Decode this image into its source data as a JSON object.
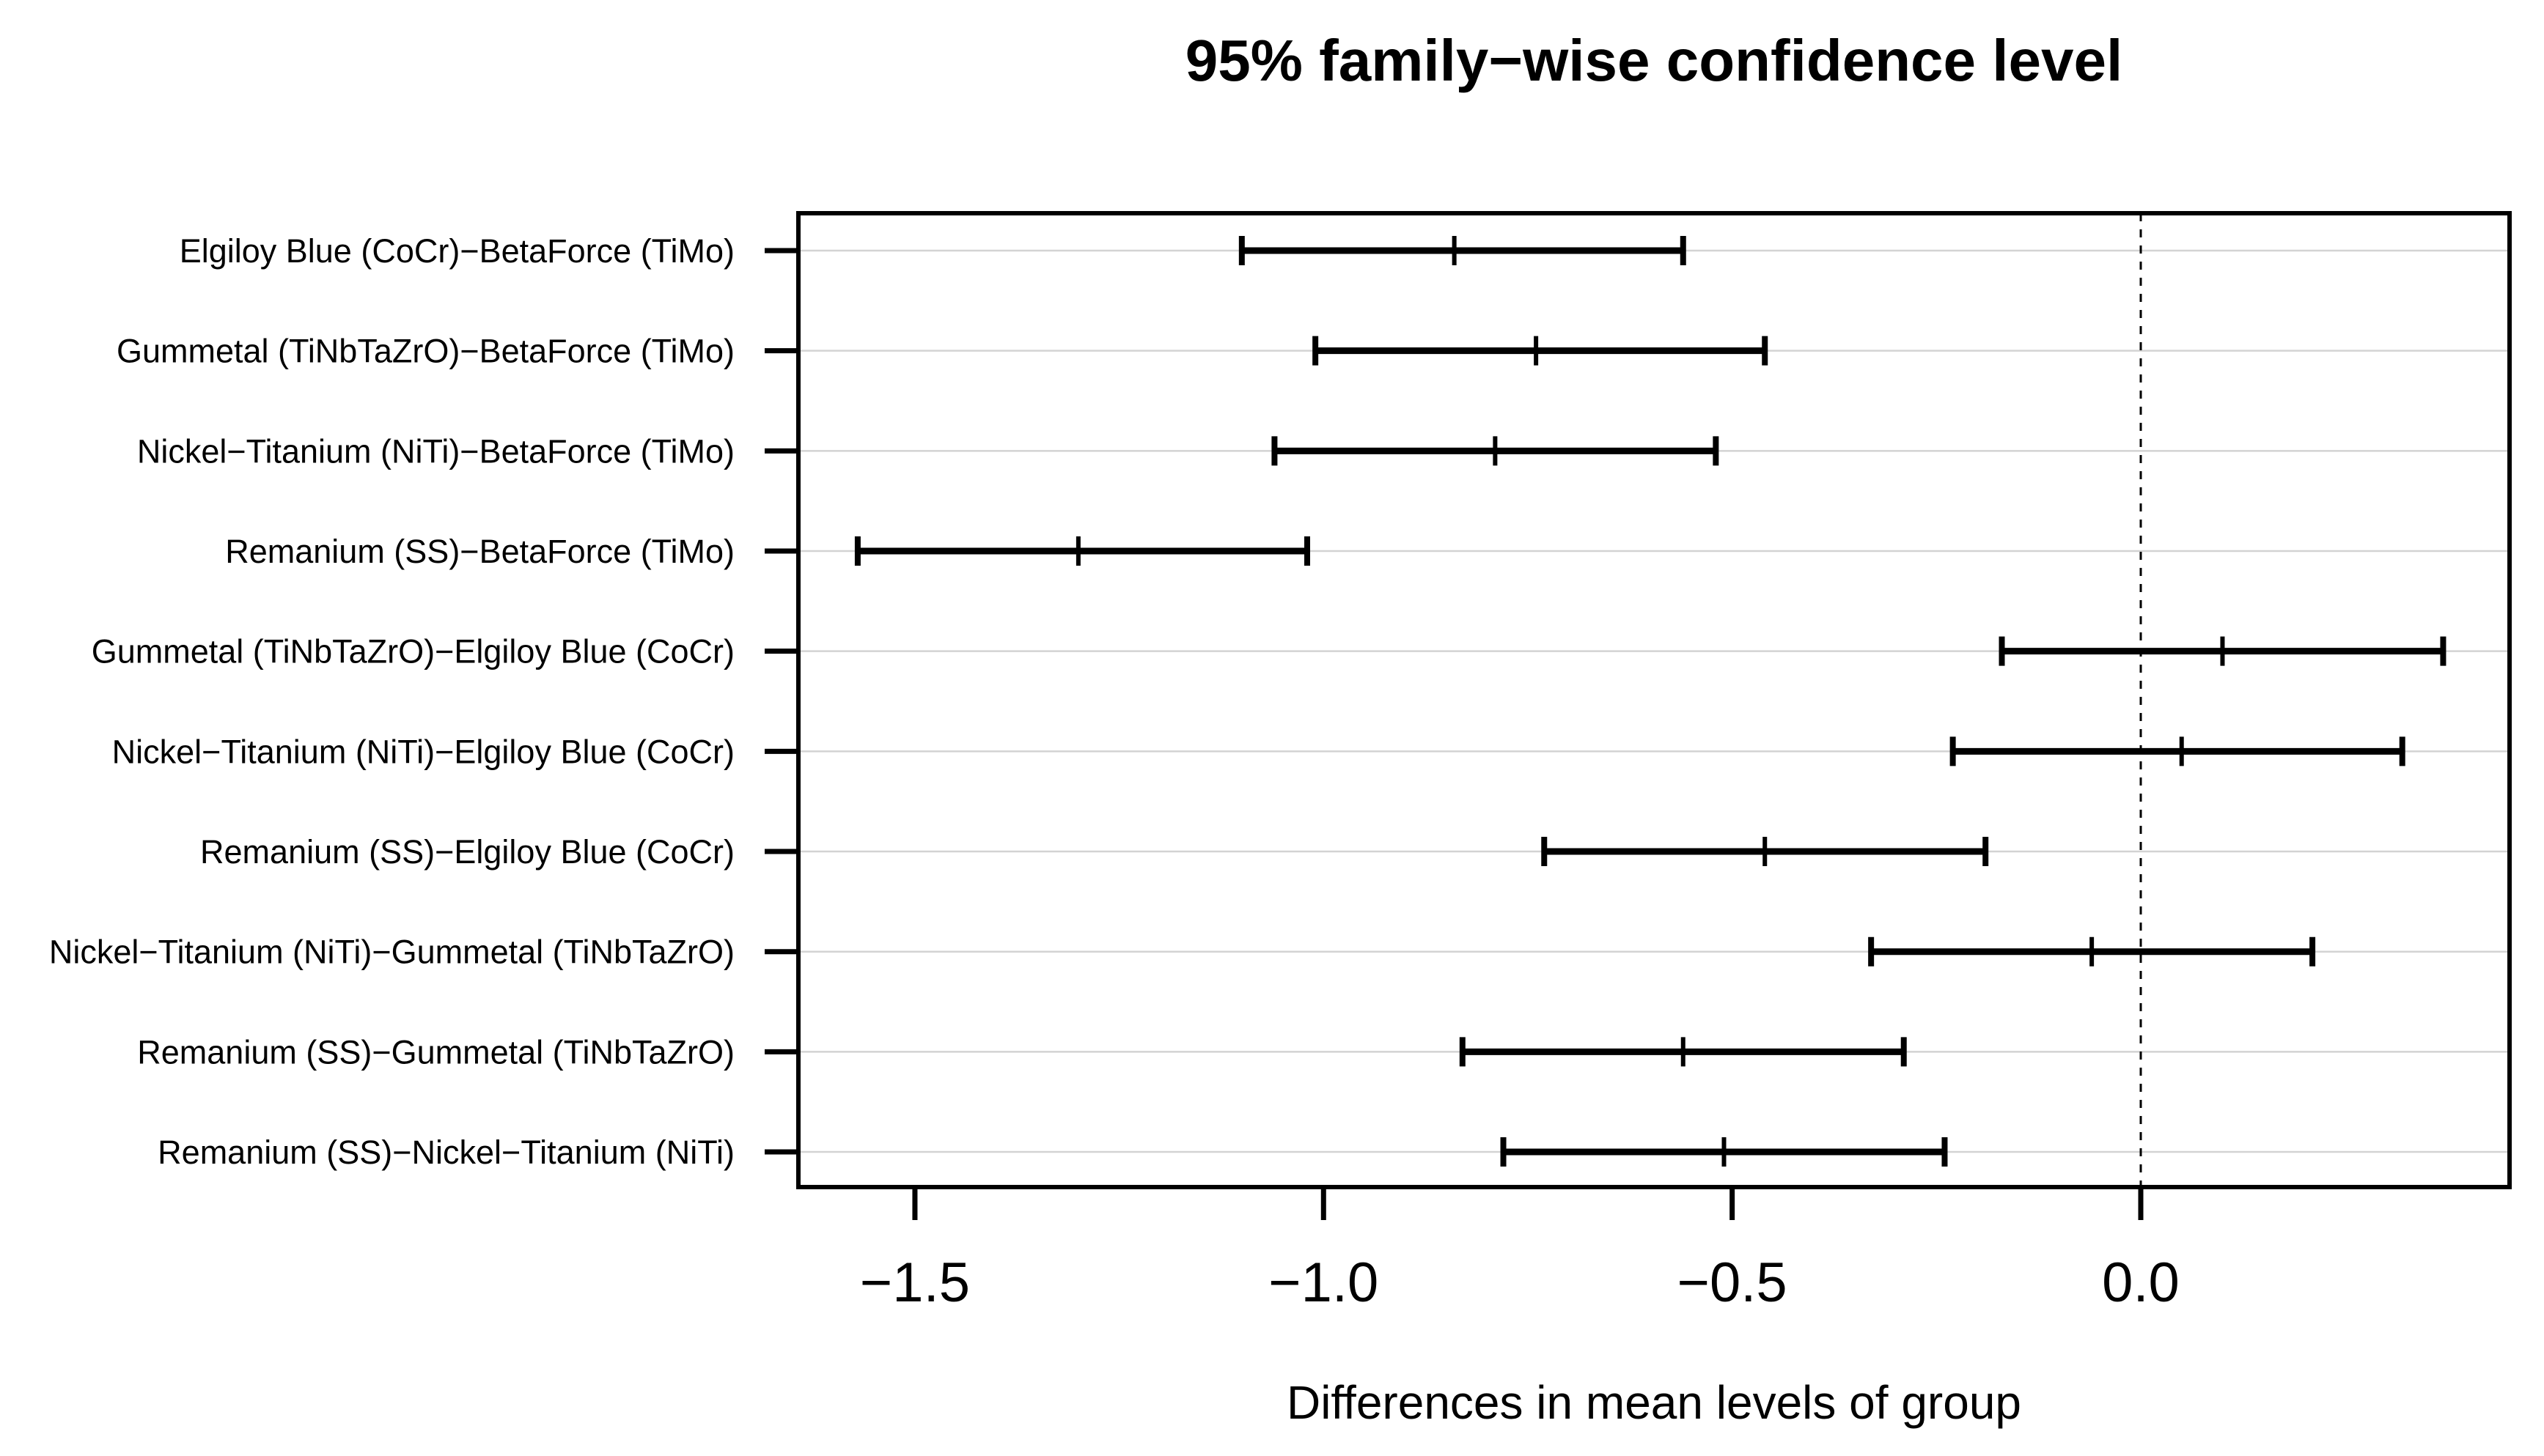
{
  "chart_data": {
    "type": "scatter",
    "subtype": "tukey-hsd-confidence-intervals",
    "title": "95% family−wise confidence level",
    "xlabel": "Differences in mean levels of group",
    "ylabel": "",
    "xlim": [
      -1.64,
      0.45
    ],
    "grid": "horizontal-light-gray",
    "legend": "none",
    "zero_reference_line": 0.0,
    "xticks": [
      {
        "label": "−1.5",
        "value": -1.5
      },
      {
        "label": "−1.0",
        "value": -1.0
      },
      {
        "label": "−0.5",
        "value": -0.5
      },
      {
        "label": "0.0",
        "value": 0.0
      }
    ],
    "comparisons": [
      {
        "label": "Elgiloy Blue (CoCr)−BetaForce (TiMo)",
        "lower": -1.1,
        "estimate": -0.84,
        "upper": -0.56
      },
      {
        "label": "Gummetal (TiNbTaZrO)−BetaForce (TiMo)",
        "lower": -1.01,
        "estimate": -0.74,
        "upper": -0.46
      },
      {
        "label": "Nickel−Titanium (NiTi)−BetaForce (TiMo)",
        "lower": -1.06,
        "estimate": -0.79,
        "upper": -0.52
      },
      {
        "label": "Remanium (SS)−BetaForce (TiMo)",
        "lower": -1.57,
        "estimate": -1.3,
        "upper": -1.02
      },
      {
        "label": "Gummetal (TiNbTaZrO)−Elgiloy Blue (CoCr)",
        "lower": -0.17,
        "estimate": 0.1,
        "upper": 0.37
      },
      {
        "label": "Nickel−Titanium (NiTi)−Elgiloy Blue (CoCr)",
        "lower": -0.23,
        "estimate": 0.05,
        "upper": 0.32
      },
      {
        "label": "Remanium (SS)−Elgiloy Blue (CoCr)",
        "lower": -0.73,
        "estimate": -0.46,
        "upper": -0.19
      },
      {
        "label": "Nickel−Titanium (NiTi)−Gummetal (TiNbTaZrO)",
        "lower": -0.33,
        "estimate": -0.06,
        "upper": 0.21
      },
      {
        "label": "Remanium (SS)−Gummetal (TiNbTaZrO)",
        "lower": -0.83,
        "estimate": -0.56,
        "upper": -0.29
      },
      {
        "label": "Remanium (SS)−Nickel−Titanium (NiTi)",
        "lower": -0.78,
        "estimate": -0.51,
        "upper": -0.24
      }
    ],
    "colors": {
      "foreground": "#000000",
      "gridline": "#d3d3d3",
      "background": "#ffffff"
    }
  }
}
